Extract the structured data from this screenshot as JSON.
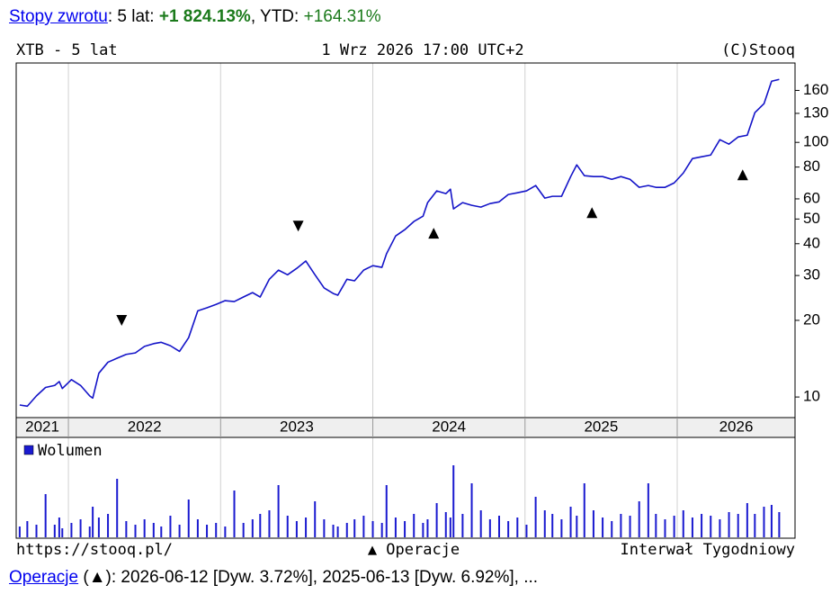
{
  "summary": [
    "Stopy zwrotu",
    ": 5 lat: ",
    "+1 824.13%",
    ", YTD: ",
    "+164.31%"
  ],
  "footer": [
    "Operacje",
    " (▲): 2026-06-12 [Dyw. 3.72%], 2025-06-13 [Dyw. 6.92%], ..."
  ],
  "chart_data": {
    "type": "line",
    "title": "XTB - 5 lat",
    "date": "1 Wrz 2026 17:00 UTC+2",
    "copyright": "(C)Stooq",
    "source": "https://stooq.pl/",
    "operations_legend": "▲ Operacje",
    "interval": "Interwał Tygodniowy",
    "color": "#1414c8",
    "log_scale": true,
    "grid": true,
    "xlim": [
      2021.657,
      2026.774
    ],
    "xticks": [
      2022,
      2023,
      2024,
      2025,
      2026
    ],
    "year_labels": [
      2021,
      2022,
      2023,
      2024,
      2025,
      2026
    ],
    "ylim": [
      8.3,
      205
    ],
    "yticks": [
      10,
      20,
      30,
      40,
      50,
      60,
      80,
      100,
      130,
      160
    ],
    "x": [
      2021.68,
      2021.73,
      2021.79,
      2021.85,
      2021.91,
      2021.94,
      2021.96,
      2022.02,
      2022.08,
      2022.14,
      2022.16,
      2022.2,
      2022.26,
      2022.32,
      2022.38,
      2022.44,
      2022.5,
      2022.56,
      2022.61,
      2022.67,
      2022.73,
      2022.79,
      2022.85,
      2022.91,
      2022.97,
      2023.03,
      2023.09,
      2023.15,
      2023.21,
      2023.26,
      2023.32,
      2023.38,
      2023.44,
      2023.5,
      2023.56,
      2023.62,
      2023.68,
      2023.74,
      2023.77,
      2023.83,
      2023.88,
      2023.94,
      2024.0,
      2024.06,
      2024.09,
      2024.15,
      2024.21,
      2024.27,
      2024.33,
      2024.36,
      2024.42,
      2024.48,
      2024.51,
      2024.53,
      2024.59,
      2024.65,
      2024.71,
      2024.77,
      2024.83,
      2024.89,
      2024.95,
      2025.01,
      2025.07,
      2025.13,
      2025.18,
      2025.24,
      2025.3,
      2025.34,
      2025.39,
      2025.45,
      2025.51,
      2025.57,
      2025.63,
      2025.69,
      2025.75,
      2025.81,
      2025.86,
      2025.92,
      2025.98,
      2026.04,
      2026.1,
      2026.16,
      2026.22,
      2026.28,
      2026.34,
      2026.4,
      2026.46,
      2026.51,
      2026.57,
      2026.62,
      2026.67
    ],
    "values": [
      9.3,
      9.2,
      10.1,
      10.9,
      11.1,
      11.5,
      10.8,
      11.7,
      11.1,
      10.1,
      9.9,
      12.4,
      13.7,
      14.2,
      14.7,
      14.9,
      15.8,
      16.2,
      16.4,
      15.9,
      15.1,
      17.1,
      21.8,
      22.4,
      23.1,
      23.9,
      23.7,
      24.7,
      25.7,
      24.7,
      29.0,
      31.5,
      30.2,
      32.0,
      34.2,
      30.2,
      26.8,
      25.5,
      25.1,
      29.0,
      28.6,
      31.5,
      32.8,
      32.3,
      36.5,
      42.9,
      45.4,
      48.9,
      51.3,
      58.0,
      64.5,
      62.9,
      65.5,
      54.8,
      58.0,
      56.6,
      55.7,
      57.5,
      58.4,
      62.4,
      63.4,
      64.5,
      67.7,
      60.4,
      61.4,
      61.4,
      73.4,
      81.6,
      74.0,
      73.4,
      73.4,
      71.6,
      73.4,
      71.6,
      66.6,
      67.7,
      66.6,
      66.6,
      69.3,
      75.8,
      86.4,
      87.8,
      89.2,
      102.5,
      98.4,
      105.0,
      106.7,
      130.8,
      141.9,
      173.9,
      176.7
    ],
    "markers": [
      {
        "x": 2022.35,
        "y": 20.0,
        "direction": "down"
      },
      {
        "x": 2023.51,
        "y": 46.9,
        "direction": "down"
      },
      {
        "x": 2024.4,
        "y": 44.0,
        "direction": "up"
      },
      {
        "x": 2025.44,
        "y": 53.0,
        "direction": "up"
      },
      {
        "x": 2026.43,
        "y": 74.6,
        "direction": "up"
      }
    ],
    "volume": {
      "name": "Wolumen",
      "color": "#1a1ad0",
      "vlim": [
        0,
        100
      ],
      "values": [
        12,
        18,
        14,
        48,
        14,
        22,
        10,
        16,
        20,
        12,
        34,
        22,
        26,
        65,
        18,
        14,
        20,
        16,
        12,
        24,
        14,
        42,
        20,
        14,
        16,
        12,
        52,
        16,
        20,
        26,
        30,
        58,
        24,
        18,
        22,
        40,
        20,
        14,
        12,
        16,
        20,
        24,
        18,
        16,
        58,
        22,
        18,
        26,
        16,
        20,
        38,
        28,
        22,
        80,
        26,
        60,
        30,
        20,
        24,
        18,
        22,
        14,
        45,
        30,
        26,
        20,
        34,
        24,
        60,
        30,
        22,
        18,
        26,
        24,
        40,
        60,
        26,
        20,
        24,
        30,
        22,
        26,
        24,
        20,
        28,
        26,
        38,
        26,
        34,
        36,
        28
      ]
    }
  }
}
